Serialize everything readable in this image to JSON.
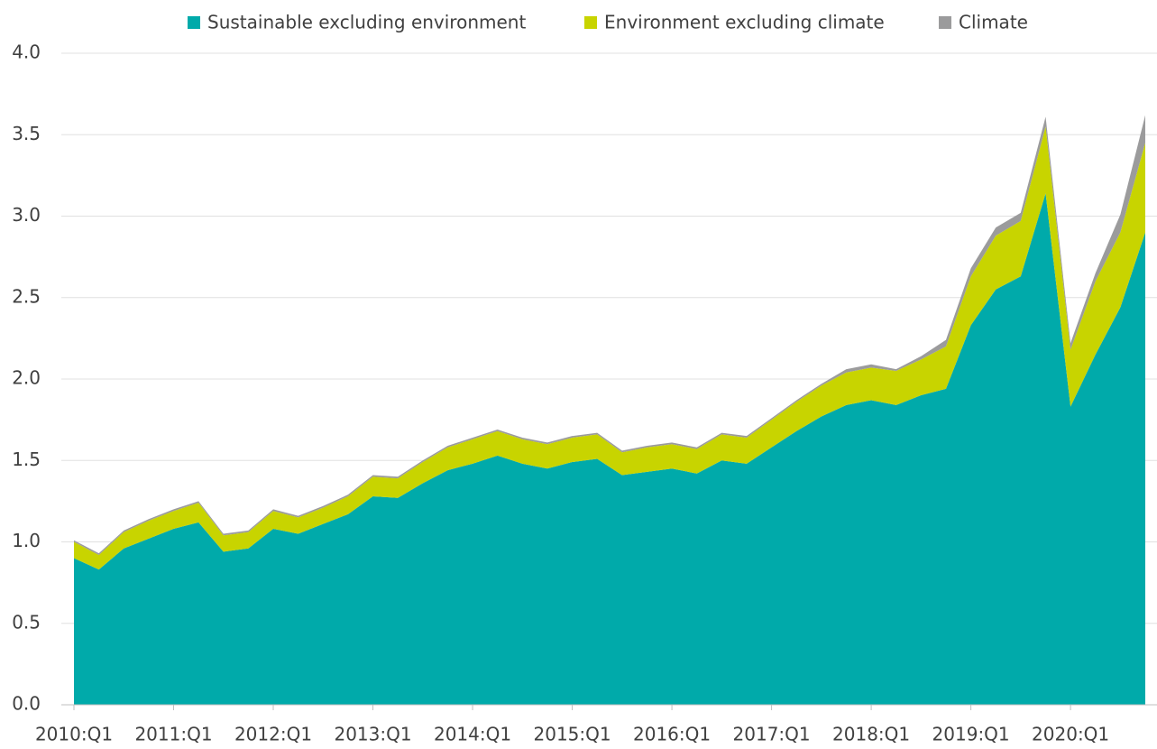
{
  "chart_data": {
    "type": "stacked_area",
    "categories": [
      "2010:Q1",
      null,
      null,
      null,
      "2011:Q1",
      null,
      null,
      null,
      "2012:Q1",
      null,
      null,
      null,
      "2013:Q1",
      null,
      null,
      null,
      "2014:Q1",
      null,
      null,
      null,
      "2015:Q1",
      null,
      null,
      null,
      "2016:Q1",
      null,
      null,
      null,
      "2017:Q1",
      null,
      null,
      null,
      "2018:Q1",
      null,
      null,
      null,
      "2019:Q1",
      null,
      null,
      null,
      "2020:Q1",
      null,
      null,
      null
    ],
    "series": [
      {
        "name": "Sustainable excluding environment",
        "color": "#00aaaa",
        "values": [
          0.9,
          0.83,
          0.96,
          1.02,
          1.08,
          1.12,
          0.94,
          0.96,
          1.08,
          1.05,
          1.11,
          1.17,
          1.28,
          1.27,
          1.36,
          1.44,
          1.48,
          1.53,
          1.48,
          1.45,
          1.49,
          1.51,
          1.41,
          1.43,
          1.45,
          1.42,
          1.5,
          1.48,
          1.58,
          1.68,
          1.77,
          1.84,
          1.87,
          1.84,
          1.9,
          1.94,
          2.33,
          2.55,
          2.63,
          3.14,
          1.83,
          2.15,
          2.44,
          2.9
        ]
      },
      {
        "name": "Environment excluding climate",
        "color": "#c8d400",
        "values": [
          0.1,
          0.09,
          0.1,
          0.11,
          0.11,
          0.12,
          0.1,
          0.1,
          0.11,
          0.1,
          0.1,
          0.11,
          0.12,
          0.12,
          0.13,
          0.14,
          0.15,
          0.15,
          0.15,
          0.15,
          0.15,
          0.15,
          0.14,
          0.15,
          0.15,
          0.15,
          0.16,
          0.16,
          0.17,
          0.18,
          0.19,
          0.2,
          0.2,
          0.21,
          0.22,
          0.26,
          0.3,
          0.33,
          0.34,
          0.41,
          0.35,
          0.45,
          0.46,
          0.55
        ]
      },
      {
        "name": "Climate",
        "color": "#9b9b9c",
        "values": [
          0.01,
          0.01,
          0.01,
          0.01,
          0.01,
          0.01,
          0.01,
          0.01,
          0.01,
          0.01,
          0.01,
          0.01,
          0.01,
          0.01,
          0.01,
          0.01,
          0.01,
          0.01,
          0.01,
          0.01,
          0.01,
          0.01,
          0.01,
          0.01,
          0.01,
          0.01,
          0.01,
          0.01,
          0.01,
          0.01,
          0.01,
          0.02,
          0.02,
          0.01,
          0.02,
          0.04,
          0.05,
          0.05,
          0.05,
          0.06,
          0.04,
          0.05,
          0.11,
          0.17
        ]
      }
    ],
    "ylim": [
      0,
      4
    ],
    "yticks": [
      {
        "value": 0,
        "label": "0.0"
      },
      0.5,
      {
        "value": 1,
        "label": "1.0"
      },
      1.5,
      {
        "value": 2,
        "label": "2.0"
      },
      2.5,
      {
        "value": 3,
        "label": "3.0"
      },
      3.5,
      {
        "value": 4,
        "label": "4.0"
      }
    ],
    "grid": true,
    "legend": "top"
  }
}
